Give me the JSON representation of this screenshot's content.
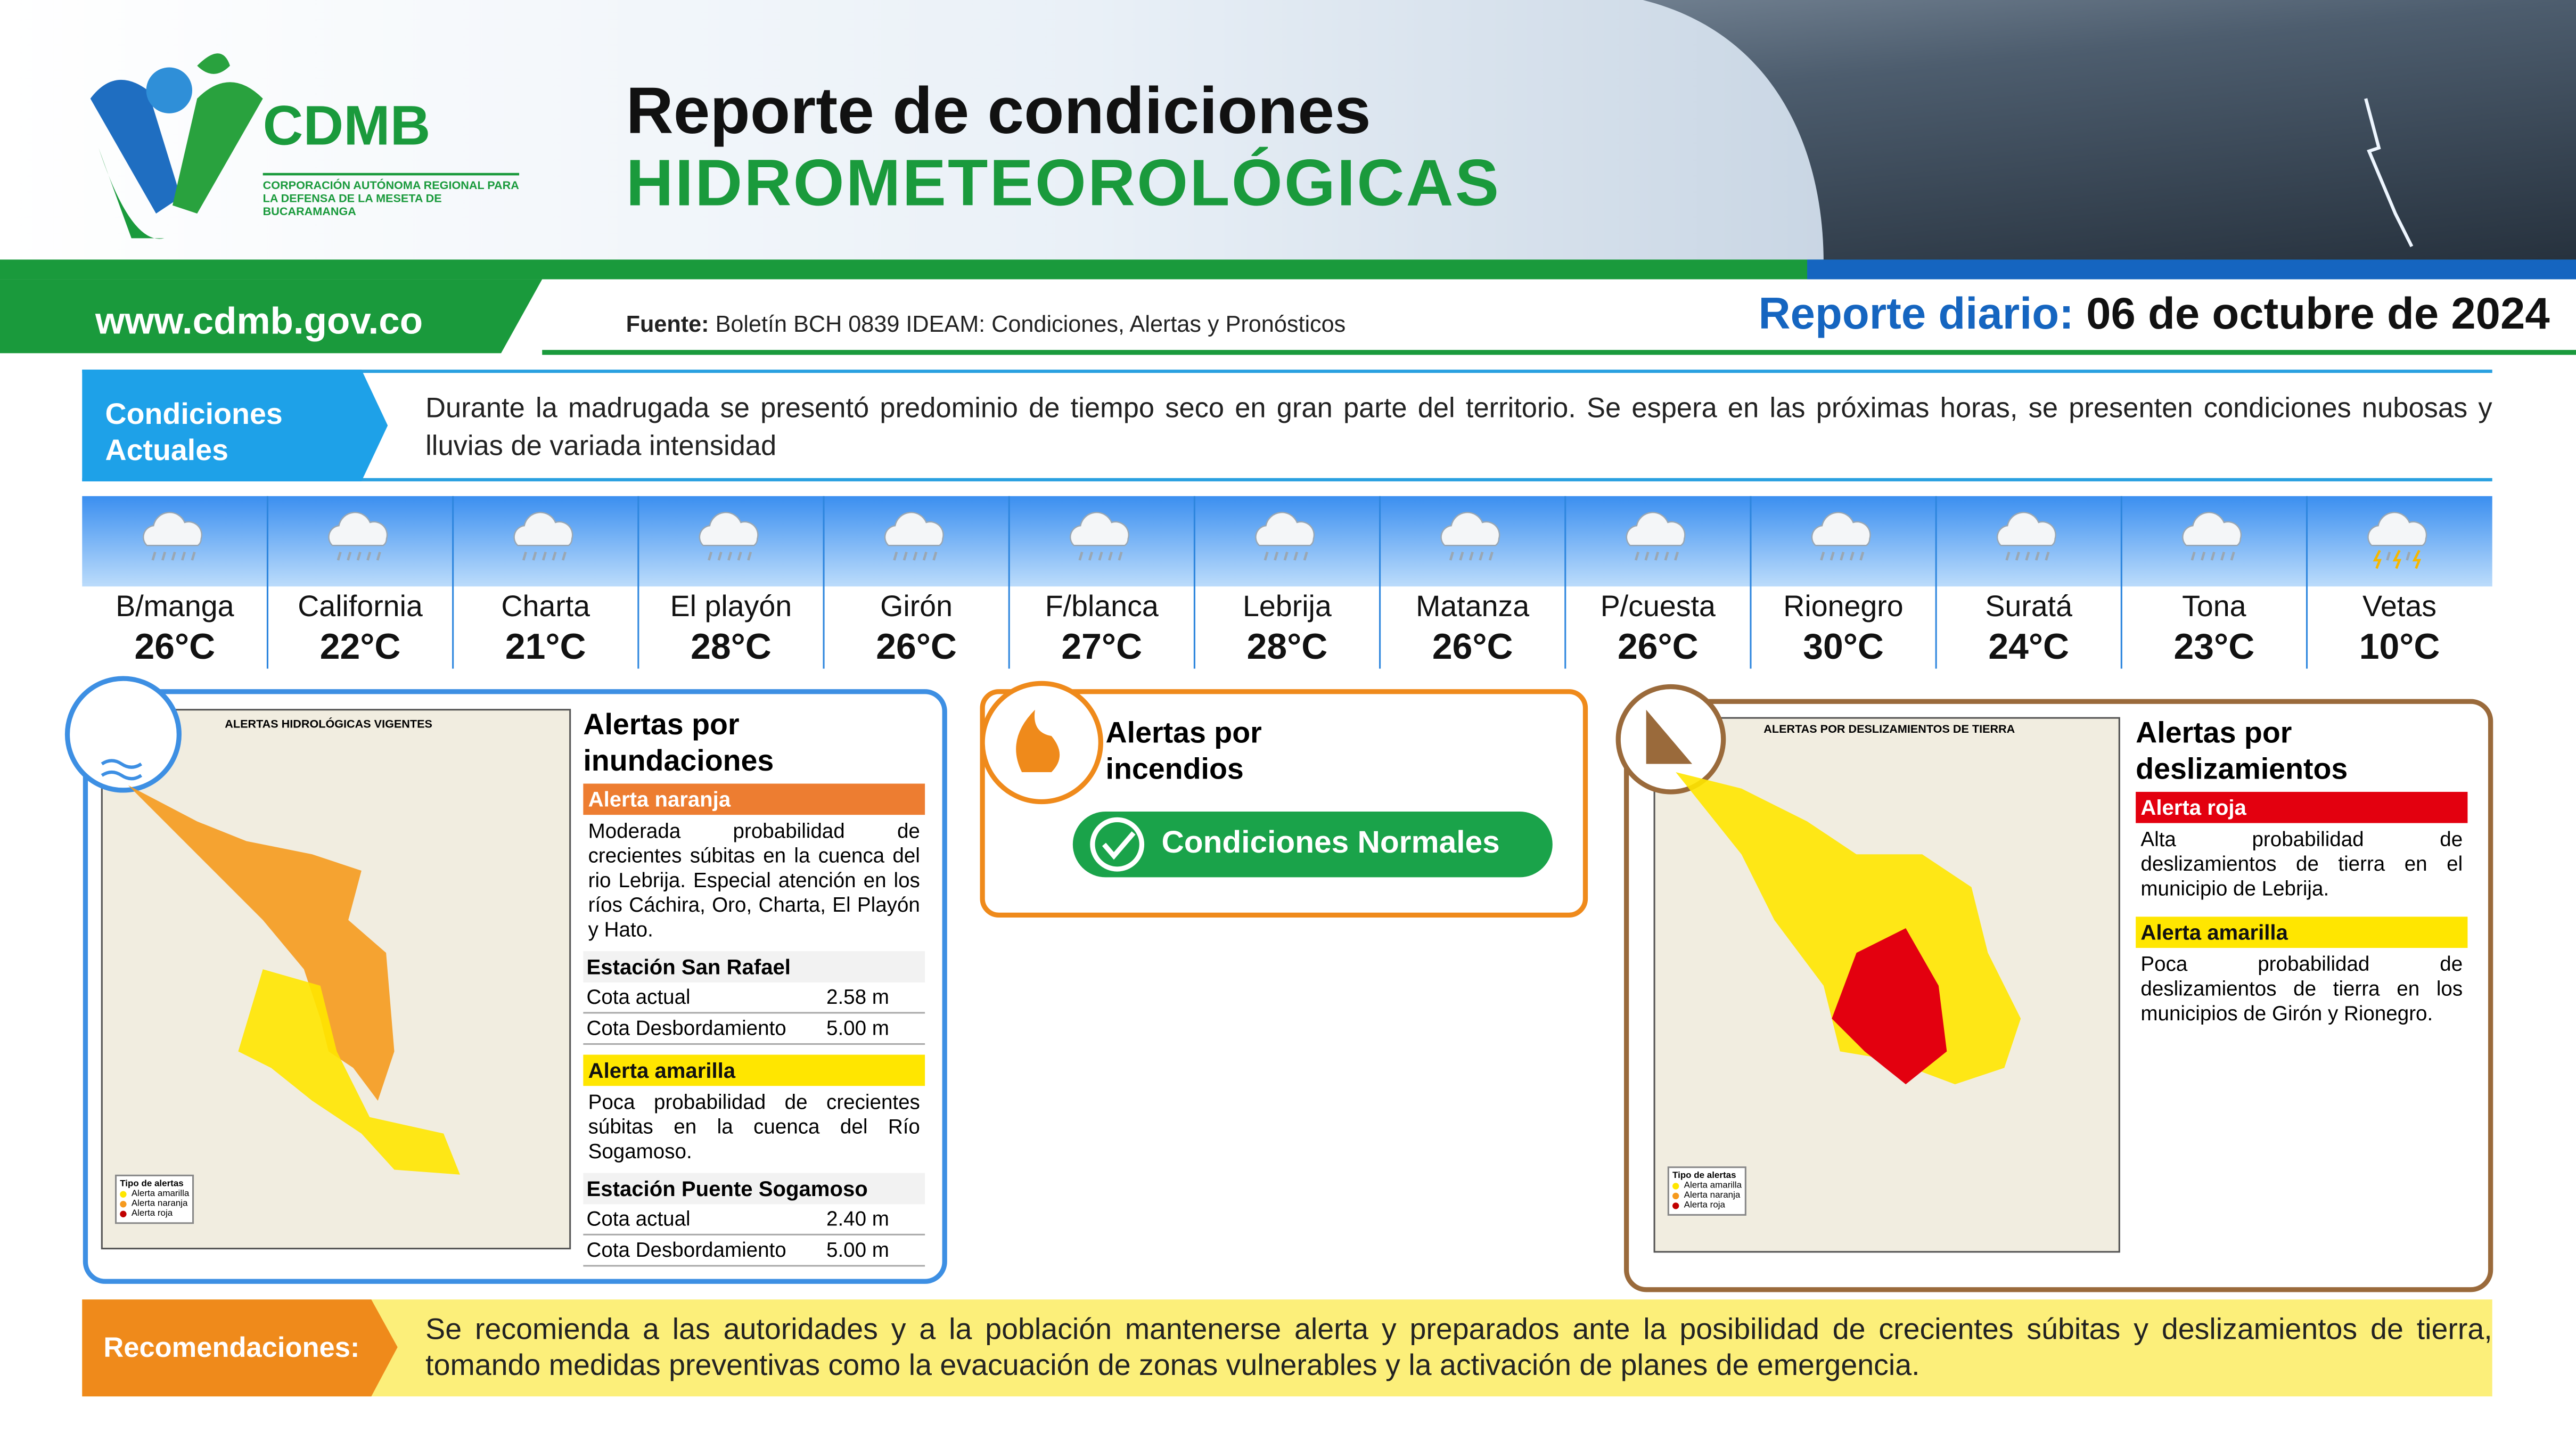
{
  "header": {
    "logo_name": "CDMB",
    "logo_subtitle": "CORPORACIÓN AUTÓNOMA REGIONAL PARA LA DEFENSA DE LA MESETA DE BUCARAMANGA",
    "title_line1": "Reporte de condiciones",
    "title_line2": "HIDROMETEOROLÓGICAS",
    "website": "www.cdmb.gov.co",
    "source_label": "Fuente:",
    "source": "Boletín BCH 0839 IDEAM: Condiciones, Alertas y Pronósticos",
    "report_label": "Reporte diario:",
    "report_date": "06 de octubre de 2024"
  },
  "current_conditions": {
    "label": "Condiciones Actuales",
    "text": "Durante la madrugada se presentó predominio de tiempo seco en gran parte del territorio. Se espera en las próximas horas, se presenten condiciones nubosas y lluvias de variada intensidad"
  },
  "forecast": [
    {
      "city": "B/manga",
      "temperature": "26°C",
      "icon": "rain"
    },
    {
      "city": "California",
      "temperature": "22°C",
      "icon": "rain"
    },
    {
      "city": "Charta",
      "temperature": "21°C",
      "icon": "rain"
    },
    {
      "city": "El playón",
      "temperature": "28°C",
      "icon": "rain"
    },
    {
      "city": "Girón",
      "temperature": "26°C",
      "icon": "rain"
    },
    {
      "city": "F/blanca",
      "temperature": "27°C",
      "icon": "rain"
    },
    {
      "city": "Lebrija",
      "temperature": "28°C",
      "icon": "rain"
    },
    {
      "city": "Matanza",
      "temperature": "26°C",
      "icon": "rain"
    },
    {
      "city": "P/cuesta",
      "temperature": "26°C",
      "icon": "rain"
    },
    {
      "city": "Rionegro",
      "temperature": "30°C",
      "icon": "rain"
    },
    {
      "city": "Suratá",
      "temperature": "24°C",
      "icon": "rain"
    },
    {
      "city": "Tona",
      "temperature": "23°C",
      "icon": "rain"
    },
    {
      "city": "Vetas",
      "temperature": "10°C",
      "icon": "storm"
    }
  ],
  "flood_alerts": {
    "map_title": "ALERTAS HIDROLÓGICAS VIGENTES",
    "title": "Alertas por inundaciones",
    "sections": [
      {
        "level": "Alerta naranja",
        "color": "#ed7d31",
        "text": "Moderada probabilidad de crecientes súbitas en la cuenca del rio Lebrija. Especial atención en los ríos Cáchira, Oro, Charta, El Playón y Hato.",
        "station": "Estación San Rafael",
        "rows": [
          [
            "Cota actual",
            "2.58 m"
          ],
          [
            "Cota Desbordamiento",
            "5.00 m"
          ]
        ]
      },
      {
        "level": "Alerta amarilla",
        "color": "#ffe600",
        "text": "Poca probabilidad de crecientes súbitas en la cuenca del Río Sogamoso.",
        "station": "Estación Puente Sogamoso",
        "rows": [
          [
            "Cota actual",
            "2.40 m"
          ],
          [
            "Cota Desbordamiento",
            "5.00 m"
          ]
        ]
      }
    ],
    "legend_title": "Tipo de alertas",
    "legend_items": [
      "Alerta amarilla",
      "Alerta naranja",
      "Alerta roja"
    ]
  },
  "fire_alerts": {
    "title": "Alertas por incendios",
    "status": "Condiciones Normales"
  },
  "landslide_alerts": {
    "map_title": "ALERTAS POR DESLIZAMIENTOS DE TIERRA",
    "title": "Alertas por deslizamientos",
    "sections": [
      {
        "level": "Alerta roja",
        "color": "#e3000f",
        "text": "Alta probabilidad de deslizamientos de tierra en el municipio de Lebrija."
      },
      {
        "level": "Alerta amarilla",
        "color": "#ffe600",
        "text": "Poca probabilidad de deslizamientos de tierra en los municipios de Girón y Rionegro."
      }
    ],
    "legend_title": "Tipo de alertas",
    "legend_items": [
      "Alerta amarilla",
      "Alerta naranja",
      "Alerta roja"
    ]
  },
  "recommendations": {
    "label": "Recomendaciones:",
    "text": "Se recomienda a las autoridades y a la población mantenerse alerta y preparados ante la posibilidad de crecientes súbitas y deslizamientos de tierra, tomando medidas preventivas como la evacuación de zonas vulnerables y la activación de planes de emergencia."
  }
}
